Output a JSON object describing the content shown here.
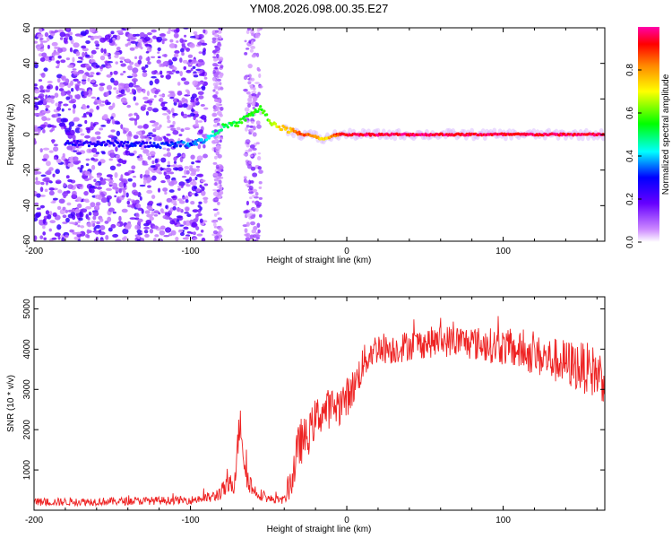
{
  "title": "YM08.2026.098.00.35.E27",
  "chart_data": [
    {
      "type": "heatmap",
      "name": "spectrogram",
      "xlabel": "Height of straight line (km)",
      "ylabel": "Frequency (Hz)",
      "xlim": [
        -200,
        165
      ],
      "ylim": [
        -60,
        60
      ],
      "xticks": [
        -200,
        -100,
        0,
        100
      ],
      "yticks": [
        -60,
        -40,
        -20,
        0,
        20,
        40,
        60
      ],
      "colorbar": {
        "label": "Normalized spectral amplitude",
        "range": [
          0,
          1
        ],
        "ticks": [
          0.0,
          0.2,
          0.4,
          0.6,
          0.8
        ],
        "colors": [
          "#ffffff",
          "#cc99ff",
          "#9900ff",
          "#0000ff",
          "#00ffff",
          "#00ff00",
          "#ffff00",
          "#ff8800",
          "#ff0000",
          "#ff00aa"
        ]
      },
      "ridge": {
        "x": [
          -180,
          -150,
          -120,
          -100,
          -90,
          -80,
          -70,
          -60,
          -55,
          -50,
          -45,
          -40,
          -35,
          -30,
          -25,
          -20,
          -15,
          -10,
          -5,
          0,
          50,
          100,
          165
        ],
        "freq": [
          -5,
          -5,
          -6,
          -5,
          -3,
          4,
          6,
          12,
          15,
          8,
          5,
          3,
          2,
          0,
          0,
          -1,
          -3,
          -1,
          0,
          0,
          0,
          0,
          0
        ],
        "amplitude": [
          0.25,
          0.25,
          0.3,
          0.35,
          0.4,
          0.5,
          0.55,
          0.55,
          0.55,
          0.6,
          0.7,
          0.75,
          0.8,
          0.85,
          0.85,
          0.8,
          0.7,
          0.8,
          0.9,
          0.95,
          0.95,
          0.95,
          0.95
        ]
      },
      "noise_band_x": [
        -200,
        -90
      ],
      "noise_strips_x": [
        [
          -85,
          -80
        ],
        [
          -65,
          -55
        ]
      ]
    },
    {
      "type": "line",
      "name": "snr",
      "xlabel": "Height of straight line (km)",
      "ylabel": "SNR (10 * v/v)",
      "xlim": [
        -200,
        165
      ],
      "ylim": [
        0,
        5300
      ],
      "xticks": [
        -200,
        -100,
        0,
        100
      ],
      "yticks": [
        1000,
        2000,
        3000,
        4000,
        5000
      ],
      "series": [
        {
          "name": "SNR",
          "color": "#ee2222",
          "envelope_x": [
            -200,
            -150,
            -100,
            -85,
            -72,
            -68,
            -65,
            -60,
            -50,
            -40,
            -35,
            -30,
            -25,
            -20,
            -15,
            -10,
            -5,
            0,
            5,
            10,
            15,
            20,
            30,
            40,
            50,
            60,
            70,
            80,
            100,
            120,
            140,
            155,
            165
          ],
          "envelope_y": [
            200,
            220,
            250,
            330,
            700,
            2300,
            1000,
            500,
            280,
            250,
            800,
            1700,
            1800,
            2300,
            2450,
            2550,
            2600,
            2800,
            3100,
            3600,
            3900,
            4050,
            4000,
            4100,
            4150,
            4200,
            4200,
            4150,
            4050,
            3850,
            3650,
            3500,
            3300
          ],
          "noise_amp_y": [
            100,
            100,
            100,
            150,
            300,
            500,
            400,
            200,
            100,
            100,
            500,
            600,
            500,
            500,
            500,
            500,
            500,
            500,
            450,
            450,
            400,
            400,
            380,
            380,
            380,
            400,
            400,
            420,
            450,
            500,
            600,
            650,
            650
          ]
        }
      ]
    }
  ]
}
